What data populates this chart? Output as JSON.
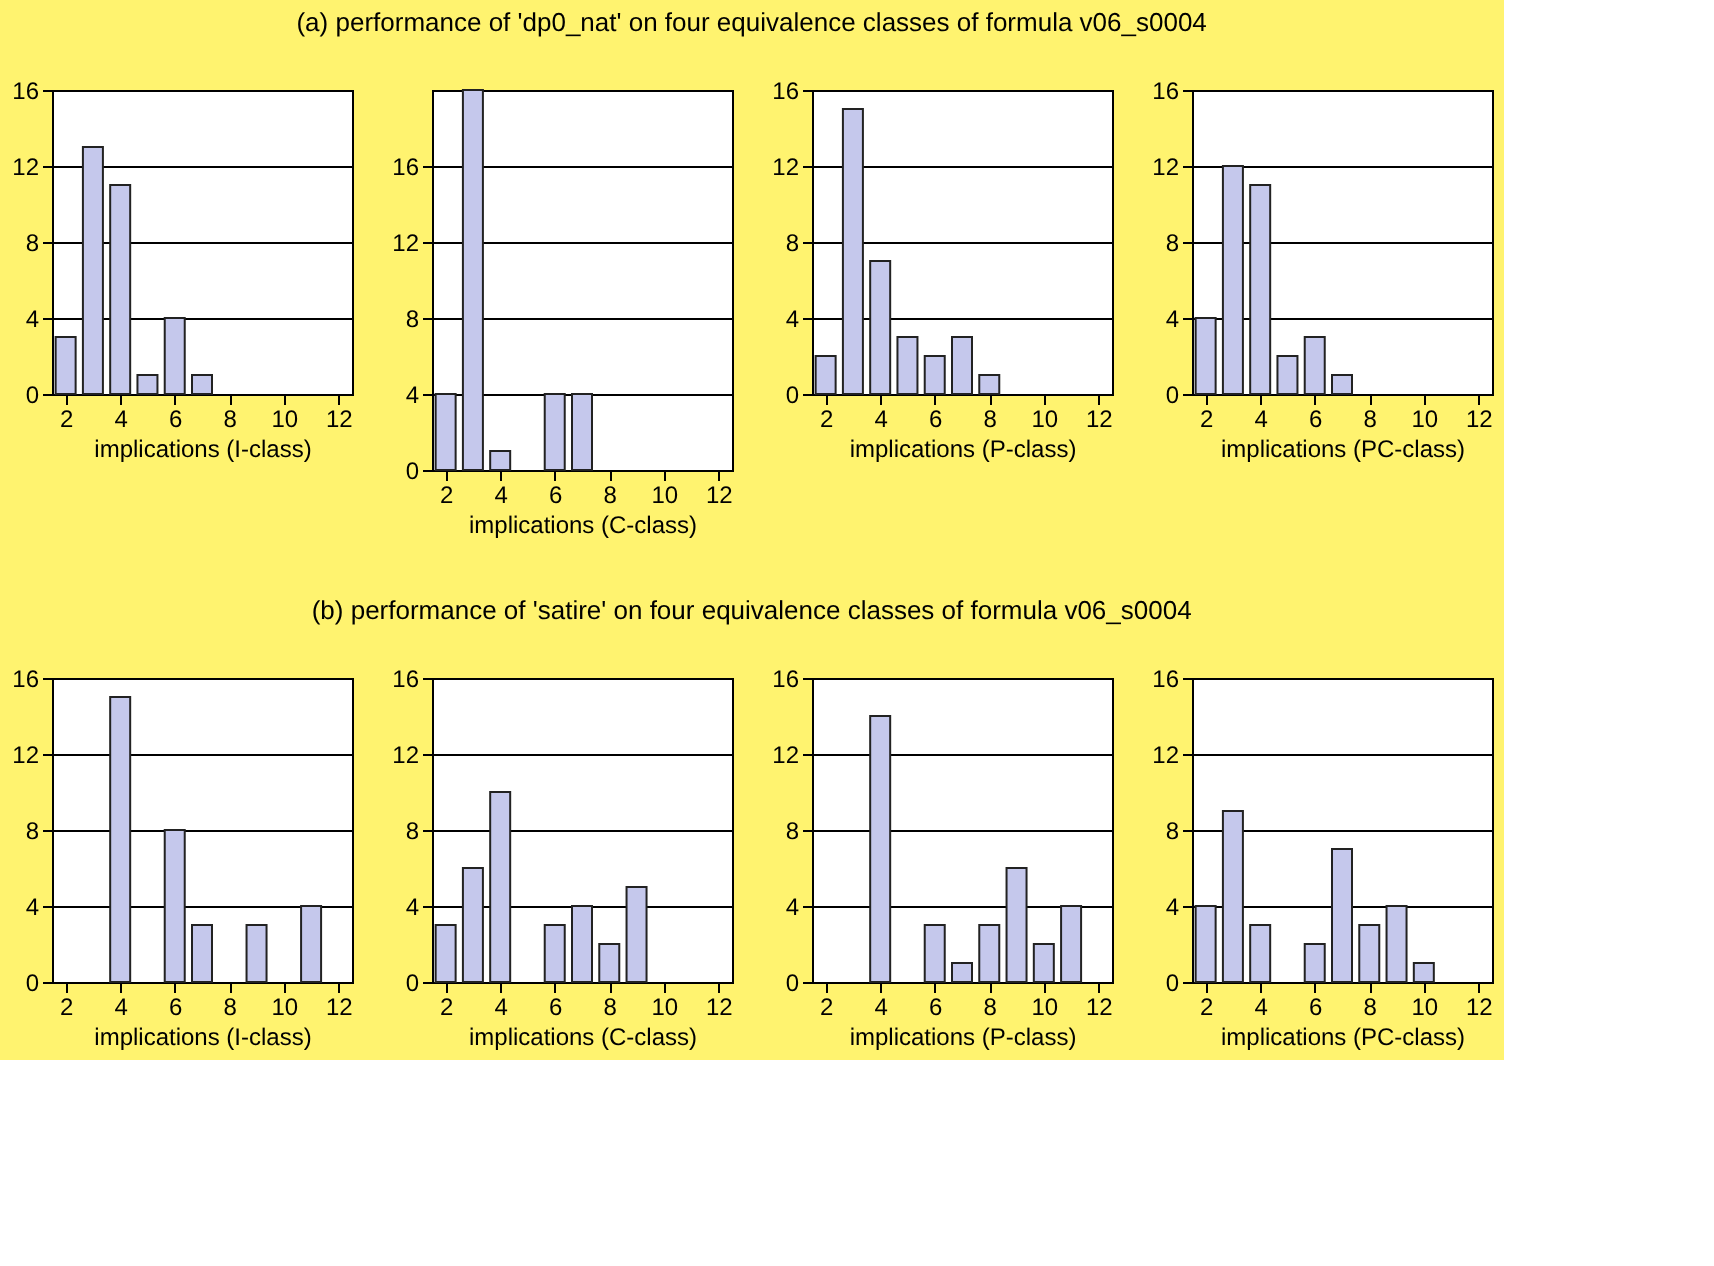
{
  "chart_data": [
    {
      "type": "bar",
      "title": "(a) performance of 'dp0_nat' on four equivalence classes of formula v06_s0004",
      "xlabel": "implications (I-class)",
      "x": [
        2,
        3,
        4,
        5,
        6,
        7
      ],
      "values": [
        3,
        13,
        11,
        1,
        4,
        1
      ],
      "color": "#c5c8ec",
      "xlim": [
        1.5,
        12.5
      ],
      "xticks": [
        2,
        4,
        6,
        8,
        10,
        12
      ],
      "ylim": [
        0,
        16
      ],
      "yticks": [
        0,
        4,
        8,
        12,
        16
      ],
      "grid": "y"
    },
    {
      "type": "bar",
      "xlabel": "implications (C-class)",
      "x": [
        2,
        3,
        4,
        6,
        7
      ],
      "values": [
        4,
        20,
        1,
        4,
        4
      ],
      "color": "#c5c8ec",
      "xlim": [
        1.5,
        12.5
      ],
      "xticks": [
        2,
        4,
        6,
        8,
        10,
        12
      ],
      "ylim": [
        0,
        20
      ],
      "yticks": [
        0,
        4,
        8,
        12,
        16
      ],
      "grid": "y"
    },
    {
      "type": "bar",
      "xlabel": "implications (P-class)",
      "x": [
        2,
        3,
        4,
        5,
        6,
        7,
        8
      ],
      "values": [
        2,
        15,
        7,
        3,
        2,
        3,
        1
      ],
      "color": "#c5c8ec",
      "xlim": [
        1.5,
        12.5
      ],
      "xticks": [
        2,
        4,
        6,
        8,
        10,
        12
      ],
      "ylim": [
        0,
        16
      ],
      "yticks": [
        0,
        4,
        8,
        12,
        16
      ],
      "grid": "y"
    },
    {
      "type": "bar",
      "xlabel": "implications (PC-class)",
      "x": [
        2,
        3,
        4,
        5,
        6,
        7
      ],
      "values": [
        4,
        12,
        11,
        2,
        3,
        1
      ],
      "color": "#c5c8ec",
      "xlim": [
        1.5,
        12.5
      ],
      "xticks": [
        2,
        4,
        6,
        8,
        10,
        12
      ],
      "ylim": [
        0,
        16
      ],
      "yticks": [
        0,
        4,
        8,
        12,
        16
      ],
      "grid": "y"
    },
    {
      "type": "bar",
      "title": "(b) performance of 'satire' on four equivalence classes of formula v06_s0004",
      "xlabel": "implications (I-class)",
      "x": [
        4,
        6,
        7,
        9,
        11
      ],
      "values": [
        15,
        8,
        3,
        3,
        4
      ],
      "color": "#c5c8ec",
      "xlim": [
        1.5,
        12.5
      ],
      "xticks": [
        2,
        4,
        6,
        8,
        10,
        12
      ],
      "ylim": [
        0,
        16
      ],
      "yticks": [
        0,
        4,
        8,
        12,
        16
      ],
      "grid": "y"
    },
    {
      "type": "bar",
      "xlabel": "implications (C-class)",
      "x": [
        2,
        3,
        4,
        6,
        7,
        8,
        9
      ],
      "values": [
        3,
        6,
        10,
        3,
        4,
        2,
        5
      ],
      "color": "#c5c8ec",
      "xlim": [
        1.5,
        12.5
      ],
      "xticks": [
        2,
        4,
        6,
        8,
        10,
        12
      ],
      "ylim": [
        0,
        16
      ],
      "yticks": [
        0,
        4,
        8,
        12,
        16
      ],
      "grid": "y"
    },
    {
      "type": "bar",
      "xlabel": "implications (P-class)",
      "x": [
        4,
        6,
        7,
        8,
        9,
        10,
        11
      ],
      "values": [
        14,
        3,
        1,
        3,
        6,
        2,
        4
      ],
      "color": "#c5c8ec",
      "xlim": [
        1.5,
        12.5
      ],
      "xticks": [
        2,
        4,
        6,
        8,
        10,
        12
      ],
      "ylim": [
        0,
        16
      ],
      "yticks": [
        0,
        4,
        8,
        12,
        16
      ],
      "grid": "y"
    },
    {
      "type": "bar",
      "xlabel": "implications (PC-class)",
      "x": [
        2,
        3,
        4,
        6,
        7,
        8,
        9,
        10
      ],
      "values": [
        4,
        9,
        3,
        2,
        7,
        3,
        4,
        1
      ],
      "color": "#c5c8ec",
      "xlim": [
        1.5,
        12.5
      ],
      "xticks": [
        2,
        4,
        6,
        8,
        10,
        12
      ],
      "ylim": [
        0,
        16
      ],
      "yticks": [
        0,
        4,
        8,
        12,
        16
      ],
      "grid": "y"
    }
  ]
}
